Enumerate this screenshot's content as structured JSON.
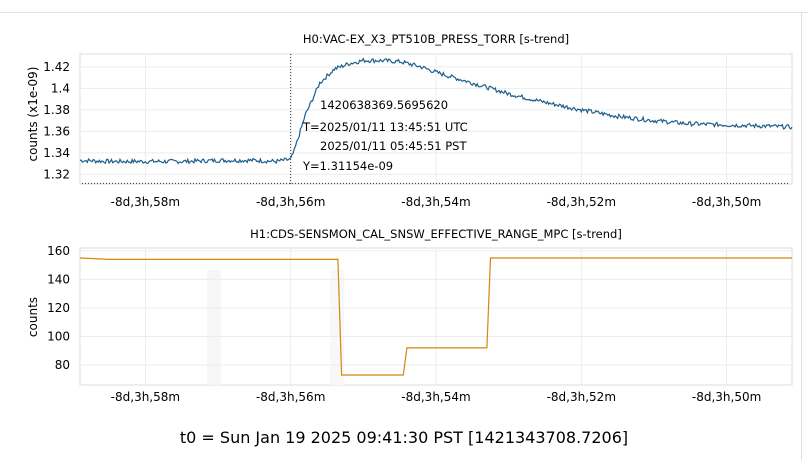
{
  "window": {
    "close_glyph": "✕"
  },
  "plots": [
    {
      "title": "H0:VAC-EX_X3_PT510B_PRESS_TORR [s-trend]",
      "ylabel": "counts (x1e-09)",
      "y_ticks": [
        "1.32",
        "1.34",
        "1.36",
        "1.38",
        "1.4",
        "1.42"
      ],
      "x_ticks": [
        "-8d,3h,58m",
        "-8d,3h,56m",
        "-8d,3h,54m",
        "-8d,3h,52m",
        "-8d,3h,50m"
      ],
      "line_color": "#1f5f8b",
      "cursor": {
        "gps": "1420638369.5695620",
        "utc": "T=2025/01/11 13:45:51 UTC",
        "pst": "2025/01/11 05:45:51 PST",
        "y": "Y=1.31154e-09"
      }
    },
    {
      "title": "H1:CDS-SENSMON_CAL_SNSW_EFFECTIVE_RANGE_MPC [s-trend]",
      "ylabel": "counts",
      "y_ticks": [
        "80",
        "100",
        "120",
        "140",
        "160"
      ],
      "x_ticks": [
        "-8d,3h,58m",
        "-8d,3h,56m",
        "-8d,3h,54m",
        "-8d,3h,52m",
        "-8d,3h,50m"
      ],
      "line_color": "#d4860f"
    }
  ],
  "footer": "t0 = Sun Jan 19 2025 09:41:30 PST [1421343708.7206]",
  "chart_data": [
    {
      "type": "line",
      "title": "H0:VAC-EX_X3_PT510B_PRESS_TORR [s-trend]",
      "ylabel": "counts (x1e-09)",
      "xlabel": "",
      "x_unit": "minutes relative to t0 (-8d,3h offset)",
      "ylim": [
        1.311,
        1.432
      ],
      "xlim": [
        -58.9,
        -49.1
      ],
      "grid": true,
      "series": [
        {
          "x": [
            -58.9,
            -58.5,
            -58.0,
            -57.5,
            -57.0,
            -56.5,
            -56.2,
            -56.0,
            -55.95,
            -55.8,
            -55.6,
            -55.4,
            -55.2,
            -55.0,
            -54.8,
            -54.5,
            -54.2,
            -54.0,
            -53.5,
            -53.0,
            -52.5,
            -52.0,
            -51.5,
            -51.0,
            -50.5,
            -50.0,
            -49.5,
            -49.1
          ],
          "y": [
            1.333,
            1.332,
            1.332,
            1.332,
            1.333,
            1.333,
            1.332,
            1.334,
            1.342,
            1.375,
            1.405,
            1.418,
            1.423,
            1.426,
            1.426,
            1.425,
            1.42,
            1.415,
            1.405,
            1.395,
            1.387,
            1.38,
            1.374,
            1.37,
            1.367,
            1.366,
            1.365,
            1.364
          ]
        }
      ]
    },
    {
      "type": "line",
      "title": "H1:CDS-SENSMON_CAL_SNSW_EFFECTIVE_RANGE_MPC [s-trend]",
      "ylabel": "counts",
      "xlabel": "",
      "x_unit": "minutes relative to t0 (-8d,3h offset)",
      "ylim": [
        66,
        162
      ],
      "xlim": [
        -58.9,
        -49.1
      ],
      "grid": true,
      "series": [
        {
          "x": [
            -58.9,
            -58.5,
            -58.0,
            -57.0,
            -56.0,
            -55.35,
            -55.3,
            -55.0,
            -54.5,
            -54.45,
            -54.4,
            -54.0,
            -53.5,
            -53.3,
            -53.25,
            -52.5,
            -51.5,
            -50.5,
            -49.1
          ],
          "y": [
            155,
            154,
            154,
            154,
            154,
            154,
            73,
            73,
            73,
            73,
            92,
            92,
            92,
            92,
            155,
            155,
            155,
            155,
            155
          ]
        }
      ]
    }
  ]
}
